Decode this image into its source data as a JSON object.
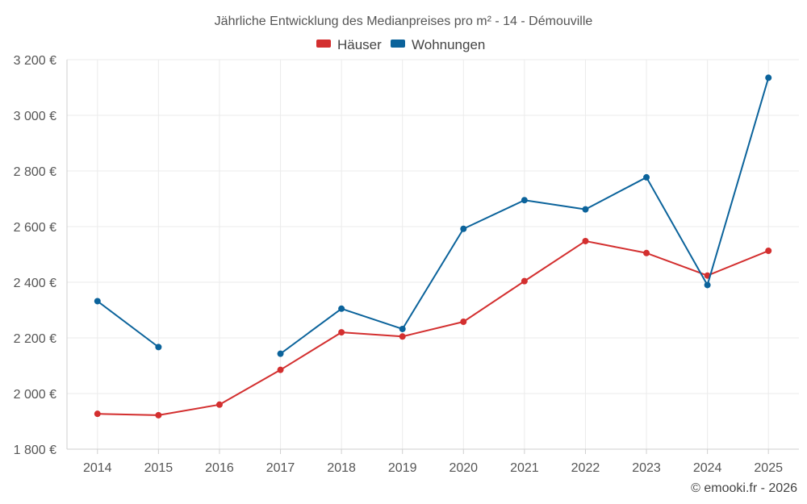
{
  "chart_data": {
    "type": "line",
    "title": "Jährliche Entwicklung des Medianpreises pro m² - 14 - Démouville",
    "categories": [
      "2014",
      "2015",
      "2016",
      "2017",
      "2018",
      "2019",
      "2020",
      "2021",
      "2022",
      "2023",
      "2024",
      "2025"
    ],
    "series": [
      {
        "name": "Häuser",
        "color": "#d32f2f",
        "values": [
          1927,
          1922,
          1960,
          2085,
          2220,
          2205,
          2258,
          2404,
          2548,
          2505,
          2424,
          2513
        ]
      },
      {
        "name": "Wohnungen",
        "color": "#0b639b",
        "values": [
          2332,
          2167,
          null,
          2143,
          2305,
          2232,
          2592,
          2695,
          2662,
          2777,
          2390,
          3135
        ]
      }
    ],
    "ylim": [
      1800,
      3200
    ],
    "yticks": [
      1800,
      2000,
      2200,
      2400,
      2600,
      2800,
      3000,
      3200
    ],
    "ytick_labels": [
      "1 800 €",
      "2 000 €",
      "2 200 €",
      "2 400 €",
      "2 600 €",
      "2 800 €",
      "3 000 €",
      "3 200 €"
    ],
    "legend_position": "top-center",
    "grid": true
  },
  "credit": "© emooki.fr - 2026"
}
